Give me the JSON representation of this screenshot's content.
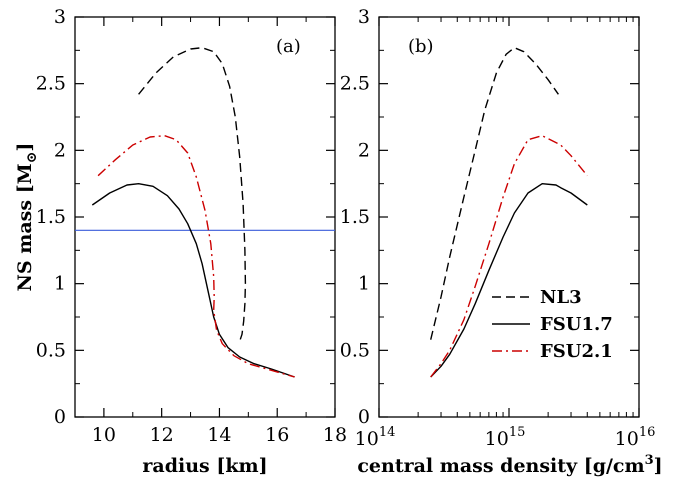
{
  "chart_data": [
    {
      "type": "line",
      "panel_label": "(a)",
      "xlabel": "radius [km]",
      "ylabel": "NS mass [M⊙]",
      "ylabel_main": "NS mass [M",
      "ylabel_sub": "⊙",
      "ylabel_end": "]",
      "xlim": [
        9,
        18
      ],
      "ylim": [
        0,
        3
      ],
      "xticks": [
        10,
        12,
        14,
        16,
        18
      ],
      "yticks": [
        0,
        0.5,
        1,
        1.5,
        2,
        2.5,
        3
      ],
      "xtick_labels": [
        "10",
        "12",
        "14",
        "16",
        "18"
      ],
      "ytick_labels": [
        "0",
        "0.5",
        "1",
        "1.5",
        "2",
        "2.5",
        "3"
      ],
      "reference_line": {
        "y": 1.4,
        "color": "#3a5bd9"
      },
      "series": [
        {
          "name": "NL3",
          "style": "dashed",
          "color": "#000000",
          "x": [
            11.2,
            11.8,
            12.4,
            13.0,
            13.4,
            13.8,
            14.1,
            14.35,
            14.55,
            14.7,
            14.82,
            14.88,
            14.9,
            14.88,
            14.84,
            14.78,
            14.72
          ],
          "y": [
            2.42,
            2.58,
            2.7,
            2.76,
            2.77,
            2.74,
            2.65,
            2.48,
            2.25,
            1.95,
            1.6,
            1.25,
            1.0,
            0.85,
            0.72,
            0.62,
            0.58
          ]
        },
        {
          "name": "FSU1.7",
          "style": "solid",
          "color": "#000000",
          "x": [
            9.6,
            10.2,
            10.8,
            11.2,
            11.7,
            12.2,
            12.6,
            12.9,
            13.2,
            13.4,
            13.6,
            13.8,
            14.0,
            14.3,
            14.7,
            15.2,
            15.8,
            16.6
          ],
          "y": [
            1.59,
            1.68,
            1.74,
            1.75,
            1.73,
            1.66,
            1.56,
            1.45,
            1.3,
            1.15,
            0.95,
            0.75,
            0.62,
            0.52,
            0.45,
            0.4,
            0.36,
            0.3
          ]
        },
        {
          "name": "FSU2.1",
          "style": "dashdot",
          "color": "#cc0000",
          "x": [
            9.8,
            10.4,
            11.0,
            11.6,
            12.1,
            12.5,
            12.9,
            13.2,
            13.5,
            13.7,
            13.8,
            13.82,
            13.8,
            13.9,
            14.1,
            14.5,
            15.0,
            15.8,
            16.6
          ],
          "y": [
            1.81,
            1.93,
            2.04,
            2.1,
            2.11,
            2.08,
            1.98,
            1.8,
            1.55,
            1.3,
            1.05,
            0.9,
            0.8,
            0.65,
            0.55,
            0.46,
            0.4,
            0.35,
            0.3
          ]
        }
      ]
    },
    {
      "type": "line",
      "panel_label": "(b)",
      "xlabel": "central mass density [g/cm³]",
      "xlabel_main": "central mass density [g/cm",
      "xlabel_sup": "3",
      "xlabel_end": "]",
      "xscale": "log",
      "xlim": [
        100000000000000.0,
        1e+16
      ],
      "ylim": [
        0,
        3
      ],
      "xticks_exp": [
        14,
        15,
        16
      ],
      "xtick_base": "10",
      "xtick_exps": [
        "14",
        "15",
        "16"
      ],
      "yticks": [
        0,
        0.5,
        1,
        1.5,
        2,
        2.5,
        3
      ],
      "ytick_labels": [
        "0",
        "0.5",
        "1",
        "1.5",
        "2",
        "2.5",
        "3"
      ],
      "series": [
        {
          "name": "NL3",
          "style": "dashed",
          "color": "#000000",
          "x": [
            250000000000000.0,
            300000000000000.0,
            350000000000000.0,
            450000000000000.0,
            550000000000000.0,
            650000000000000.0,
            800000000000000.0,
            950000000000000.0,
            1100000000000000.0,
            1300000000000000.0,
            1600000000000000.0,
            2000000000000000.0,
            2400000000000000.0
          ],
          "y": [
            0.58,
            0.9,
            1.2,
            1.65,
            2.0,
            2.3,
            2.58,
            2.72,
            2.77,
            2.74,
            2.65,
            2.53,
            2.42
          ]
        },
        {
          "name": "FSU1.7",
          "style": "solid",
          "color": "#000000",
          "x": [
            250000000000000.0,
            300000000000000.0,
            350000000000000.0,
            450000000000000.0,
            550000000000000.0,
            700000000000000.0,
            900000000000000.0,
            1100000000000000.0,
            1400000000000000.0,
            1800000000000000.0,
            2300000000000000.0,
            2500000000000000.0,
            3000000000000000.0,
            4000000000000000.0
          ],
          "y": [
            0.3,
            0.38,
            0.47,
            0.66,
            0.85,
            1.1,
            1.35,
            1.53,
            1.68,
            1.75,
            1.74,
            1.72,
            1.68,
            1.59
          ]
        },
        {
          "name": "FSU2.1",
          "style": "dashdot",
          "color": "#cc0000",
          "x": [
            250000000000000.0,
            300000000000000.0,
            350000000000000.0,
            450000000000000.0,
            550000000000000.0,
            700000000000000.0,
            900000000000000.0,
            1100000000000000.0,
            1400000000000000.0,
            1800000000000000.0,
            2500000000000000.0,
            3000000000000000.0,
            4000000000000000.0
          ],
          "y": [
            0.3,
            0.4,
            0.5,
            0.73,
            0.98,
            1.3,
            1.65,
            1.9,
            2.08,
            2.11,
            2.04,
            1.96,
            1.81
          ]
        }
      ],
      "legend": {
        "placement": "bottom-right",
        "entries": [
          "NL3",
          "FSU1.7",
          "FSU2.1"
        ]
      }
    }
  ]
}
